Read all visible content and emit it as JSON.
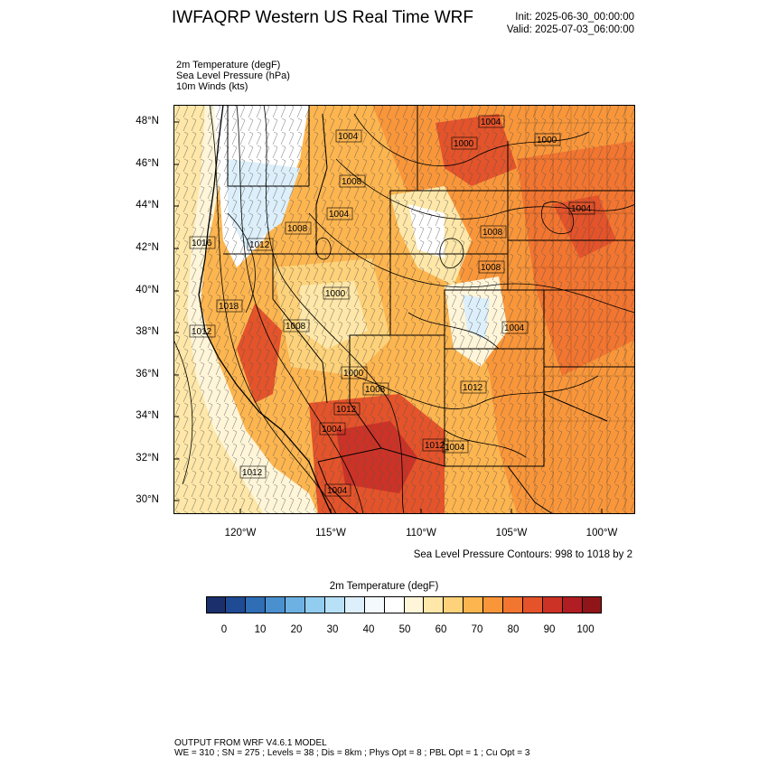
{
  "header": {
    "title": "IWFAQRP Western US Real Time WRF",
    "init": "Init: 2025-06-30_00:00:00",
    "valid": "Valid: 2025-07-03_06:00:00"
  },
  "fields": {
    "temp": "2m Temperature   (degF)",
    "slp": "Sea Level Pressure   (hPa)",
    "wind": "10m Winds   (kts)"
  },
  "map": {
    "lat_labels": [
      "48°N",
      "46°N",
      "44°N",
      "42°N",
      "40°N",
      "38°N",
      "36°N",
      "34°N",
      "32°N",
      "30°N"
    ],
    "lon_labels": [
      "120°W",
      "115°W",
      "110°W",
      "105°W",
      "100°W"
    ],
    "pressure_labels": [
      "1004",
      "1004",
      "1000",
      "1000",
      "1008",
      "1016",
      "1012",
      "1008",
      "1004",
      "1000",
      "1004",
      "1008",
      "1018",
      "1012",
      "1008",
      "1008",
      "1004",
      "1008",
      "1004",
      "1012",
      "1000",
      "1012",
      "1004",
      "1012",
      "1012",
      "1004"
    ],
    "contour_note": "Sea Level Pressure Contours: 998 to 1018 by 2"
  },
  "colorbar": {
    "title": "2m Temperature   (degF)",
    "colors": [
      "#1a2f6b",
      "#1f4a94",
      "#2f6db5",
      "#4a90cf",
      "#6db1e3",
      "#92cdf0",
      "#b8e0f7",
      "#dceffa",
      "#f4f9fd",
      "#ffffff",
      "#fff5d9",
      "#fee7a8",
      "#fdd27a",
      "#fdb54f",
      "#f9963a",
      "#f27530",
      "#e4532a",
      "#cc3226",
      "#b01d22",
      "#8f1519"
    ],
    "labels": [
      "0",
      "10",
      "20",
      "30",
      "40",
      "50",
      "60",
      "70",
      "80",
      "90",
      "100"
    ]
  },
  "footer": {
    "line1": "OUTPUT FROM WRF V4.6.1 MODEL",
    "line2": "WE = 310 ; SN = 275 ; Levels = 38 ; Dis = 8km ; Phys Opt = 8 ; PBL Opt = 1 ; Cu Opt = 3"
  }
}
